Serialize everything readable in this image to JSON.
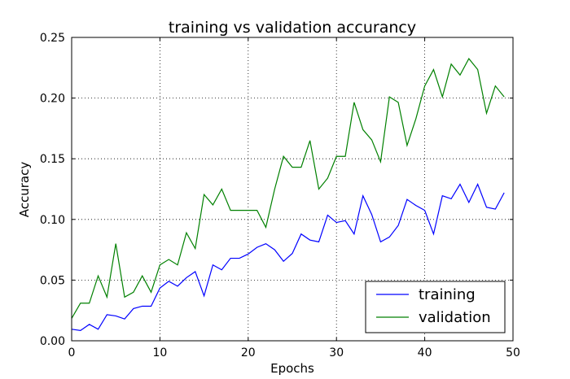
{
  "chart_data": {
    "type": "line",
    "title": "training  vs validation accurancy",
    "xlabel": "Epochs",
    "ylabel": "Accuracy",
    "xlim": [
      0,
      50
    ],
    "ylim": [
      0,
      0.25
    ],
    "xticks": [
      0,
      10,
      20,
      30,
      40,
      50
    ],
    "yticks": [
      0.0,
      0.05,
      0.1,
      0.15,
      0.2,
      0.25
    ],
    "xtick_labels": [
      "0",
      "10",
      "20",
      "30",
      "40",
      "50"
    ],
    "ytick_labels": [
      "0.00",
      "0.05",
      "0.10",
      "0.15",
      "0.20",
      "0.25"
    ],
    "grid": true,
    "legend_position": "bottom-right",
    "x": [
      0,
      1,
      2,
      3,
      4,
      5,
      6,
      7,
      8,
      9,
      10,
      11,
      12,
      13,
      14,
      15,
      16,
      17,
      18,
      19,
      20,
      21,
      22,
      23,
      24,
      25,
      26,
      27,
      28,
      29,
      30,
      31,
      32,
      33,
      34,
      35,
      36,
      37,
      38,
      39,
      40,
      41,
      42,
      43,
      44,
      45,
      46,
      47,
      48,
      49
    ],
    "series": [
      {
        "name": "training",
        "color": "#0000ff",
        "values": [
          0.0095,
          0.0085,
          0.0135,
          0.0095,
          0.0215,
          0.0205,
          0.018,
          0.0265,
          0.0285,
          0.0285,
          0.0435,
          0.049,
          0.045,
          0.052,
          0.057,
          0.037,
          0.0625,
          0.0585,
          0.068,
          0.068,
          0.0715,
          0.077,
          0.08,
          0.075,
          0.0655,
          0.072,
          0.088,
          0.083,
          0.0815,
          0.1035,
          0.0975,
          0.099,
          0.088,
          0.1195,
          0.104,
          0.0815,
          0.0855,
          0.095,
          0.1165,
          0.1115,
          0.1075,
          0.088,
          0.1195,
          0.117,
          0.129,
          0.114,
          0.129,
          0.11,
          0.1085,
          0.122
        ]
      },
      {
        "name": "validation",
        "color": "#008000",
        "values": [
          0.0185,
          0.031,
          0.031,
          0.0535,
          0.036,
          0.08,
          0.036,
          0.04,
          0.0535,
          0.04,
          0.0625,
          0.067,
          0.0625,
          0.089,
          0.076,
          0.1205,
          0.112,
          0.125,
          0.1075,
          0.1075,
          0.1075,
          0.1075,
          0.0935,
          0.125,
          0.152,
          0.143,
          0.143,
          0.165,
          0.125,
          0.134,
          0.152,
          0.152,
          0.1965,
          0.174,
          0.1655,
          0.1475,
          0.201,
          0.1965,
          0.161,
          0.183,
          0.21,
          0.2235,
          0.201,
          0.228,
          0.219,
          0.2325,
          0.2235,
          0.1875,
          0.21,
          0.201
        ]
      }
    ]
  }
}
